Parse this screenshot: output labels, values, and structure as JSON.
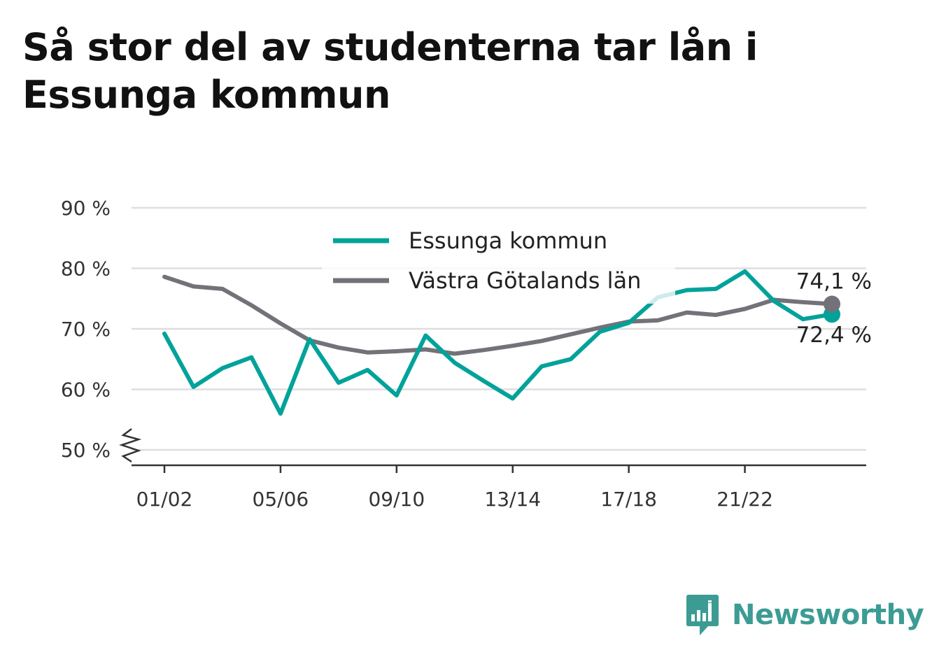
{
  "chart_data": {
    "type": "line",
    "title": "Så stor del av studenterna tar lån i Essunga kommun",
    "xlabel": "",
    "ylabel": "",
    "ylim": [
      50,
      90
    ],
    "y_ticks": [
      {
        "value": 50,
        "label": "50 %"
      },
      {
        "value": 60,
        "label": "60 %"
      },
      {
        "value": 70,
        "label": "70 %"
      },
      {
        "value": 80,
        "label": "80 %"
      },
      {
        "value": 90,
        "label": "90 %"
      }
    ],
    "y_axis_broken": true,
    "grid": true,
    "legend_position": "top-center",
    "x": [
      "01/02",
      "02/03",
      "03/04",
      "04/05",
      "05/06",
      "06/07",
      "07/08",
      "08/09",
      "09/10",
      "10/11",
      "11/12",
      "12/13",
      "13/14",
      "14/15",
      "15/16",
      "16/17",
      "17/18",
      "18/19",
      "19/20",
      "20/21",
      "21/22",
      "22/23",
      "23/24",
      "24/25"
    ],
    "x_tick_labels": [
      "01/02",
      "05/06",
      "09/10",
      "13/14",
      "17/18",
      "21/22"
    ],
    "series": [
      {
        "name": "Essunga kommun",
        "color": "#00a29a",
        "values": [
          69.2,
          60.4,
          63.5,
          65.3,
          56.0,
          68.3,
          61.1,
          63.2,
          59.0,
          68.9,
          64.4,
          61.4,
          58.5,
          63.8,
          65.0,
          69.5,
          71.0,
          75.2,
          76.4,
          76.6,
          79.5,
          74.6,
          71.6,
          72.4
        ],
        "end_label": "72,4 %"
      },
      {
        "name": "Västra Götalands län",
        "color": "#737278",
        "values": [
          78.6,
          77.0,
          76.6,
          73.9,
          70.9,
          68.1,
          66.9,
          66.1,
          66.3,
          66.6,
          65.9,
          66.5,
          67.2,
          68.0,
          69.1,
          70.2,
          71.2,
          71.4,
          72.7,
          72.3,
          73.3,
          74.8,
          74.4,
          74.1
        ],
        "end_label": "74,1 %"
      }
    ]
  },
  "brand": {
    "name": "Newsworthy",
    "color": "#3c9c94"
  }
}
